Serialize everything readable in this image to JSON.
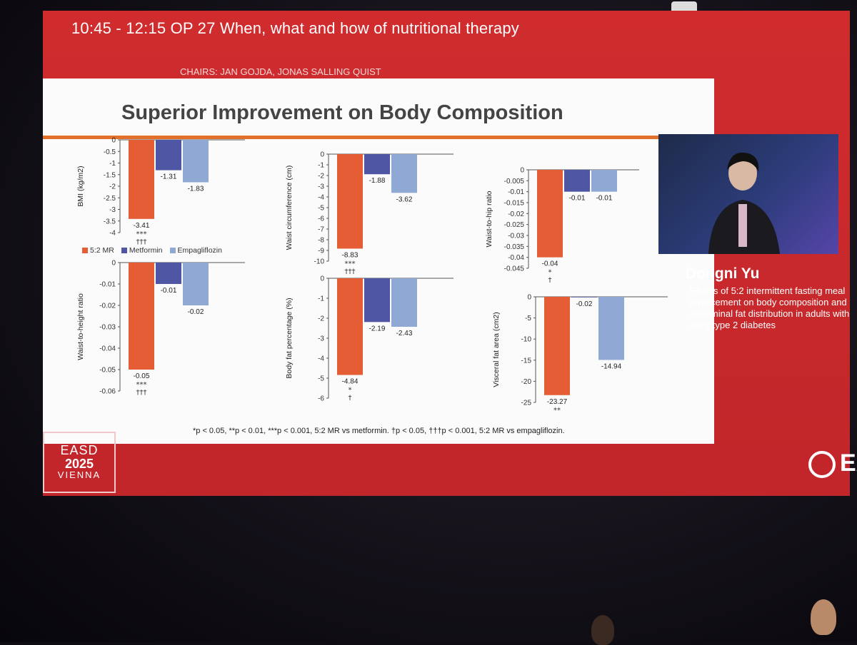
{
  "session": {
    "time_title": "10:45 - 12:15   OP 27 When, what and how of nutritional therapy",
    "chairs": "CHAIRS: JAN GOJDA, JONAS SALLING QUIST"
  },
  "slide": {
    "title": "Superior Improvement on Body Composition",
    "footnote": "*p < 0.05, **p < 0.01, ***p < 0.001, 5:2 MR vs metformin. †p < 0.05, †††p < 0.001, 5:2 MR vs empagliflozin.",
    "legend": [
      {
        "label": "5:2 MR",
        "color": "#e45d35"
      },
      {
        "label": "Metformin",
        "color": "#4f56a3"
      },
      {
        "label": "Empagliflozin",
        "color": "#8fa9d4"
      }
    ]
  },
  "chart_data": [
    {
      "type": "bar",
      "ylabel": "BMI (kg/m2)",
      "categories": [
        "5:2 MR",
        "Metformin",
        "Empagliflozin"
      ],
      "values": [
        -3.41,
        -1.31,
        -1.83
      ],
      "labels": [
        "-3.41",
        "-1.31",
        "-1.83"
      ],
      "ylim": [
        -4,
        0
      ],
      "ticks": [
        "0",
        "-0.5",
        "-1",
        "-1.5",
        "-2",
        "-2.5",
        "-3",
        "-3.5",
        "-4"
      ],
      "tick_values": [
        0,
        -0.5,
        -1,
        -1.5,
        -2,
        -2.5,
        -3,
        -3.5,
        -4
      ],
      "sig": [
        "***",
        "†††"
      ]
    },
    {
      "type": "bar",
      "ylabel": "Waist circumference (cm)",
      "categories": [
        "5:2 MR",
        "Metformin",
        "Empagliflozin"
      ],
      "values": [
        -8.83,
        -1.88,
        -3.62
      ],
      "labels": [
        "-8.83",
        "-1.88",
        "-3.62"
      ],
      "ylim": [
        -10,
        0
      ],
      "ticks": [
        "0",
        "-1",
        "-2",
        "-3",
        "-4",
        "-5",
        "-6",
        "-7",
        "-8",
        "-9",
        "-10"
      ],
      "tick_values": [
        0,
        -1,
        -2,
        -3,
        -4,
        -5,
        -6,
        -7,
        -8,
        -9,
        -10
      ],
      "sig": [
        "***",
        "†††"
      ]
    },
    {
      "type": "bar",
      "ylabel": "Waist-to-hip ratio",
      "categories": [
        "5:2 MR",
        "Metformin",
        "Empagliflozin"
      ],
      "values": [
        -0.04,
        -0.01,
        -0.01
      ],
      "labels": [
        "-0.04",
        "-0.01",
        "-0.01"
      ],
      "ylim": [
        -0.045,
        0
      ],
      "ticks": [
        "0",
        "-0.005",
        "-0.01",
        "-0.015",
        "-0.02",
        "-0.025",
        "-0.03",
        "-0.035",
        "-0.04",
        "-0.045"
      ],
      "tick_values": [
        0,
        -0.005,
        -0.01,
        -0.015,
        -0.02,
        -0.025,
        -0.03,
        -0.035,
        -0.04,
        -0.045
      ],
      "sig": [
        "*",
        "†"
      ]
    },
    {
      "type": "bar",
      "ylabel": "Waist-to-height ratio",
      "categories": [
        "5:2 MR",
        "Metformin",
        "Empagliflozin"
      ],
      "values": [
        -0.05,
        -0.01,
        -0.02
      ],
      "labels": [
        "-0.05",
        "-0.01",
        "-0.02"
      ],
      "ylim": [
        -0.06,
        0
      ],
      "ticks": [
        "0",
        "-0.01",
        "-0.02",
        "-0.03",
        "-0.04",
        "-0.05",
        "-0.06"
      ],
      "tick_values": [
        0,
        -0.01,
        -0.02,
        -0.03,
        -0.04,
        -0.05,
        -0.06
      ],
      "sig": [
        "***",
        "†††"
      ]
    },
    {
      "type": "bar",
      "ylabel": "Body fat percentage (%)",
      "categories": [
        "5:2 MR",
        "Metformin",
        "Empagliflozin"
      ],
      "values": [
        -4.84,
        -2.19,
        -2.43
      ],
      "labels": [
        "-4.84",
        "-2.19",
        "-2.43"
      ],
      "ylim": [
        -6,
        0
      ],
      "ticks": [
        "0",
        "-1",
        "-2",
        "-3",
        "-4",
        "-5",
        "-6"
      ],
      "tick_values": [
        0,
        -1,
        -2,
        -3,
        -4,
        -5,
        -6
      ],
      "sig": [
        "*",
        "†"
      ]
    },
    {
      "type": "bar",
      "ylabel": "Visceral fat area (cm2)",
      "categories": [
        "5:2 MR",
        "Metformin",
        "Empagliflozin"
      ],
      "values": [
        -23.27,
        -0.02,
        -14.94
      ],
      "labels": [
        "-23.27",
        "-0.02",
        "-14.94"
      ],
      "ylim": [
        -25,
        0
      ],
      "ticks": [
        "0",
        "-5",
        "-10",
        "-15",
        "-20",
        "-25"
      ],
      "tick_values": [
        0,
        -5,
        -10,
        -15,
        -20,
        -25
      ],
      "sig": [
        "**"
      ]
    }
  ],
  "speaker": {
    "name": "Dongni Yu",
    "talk": "Effects of 5:2 intermittent fasting meal replacement on body composition and abdominal fat distribution in adults with early type 2 diabetes"
  },
  "event_logo": {
    "line1": "EASD",
    "line2": "2025",
    "line3": "VIENNA"
  },
  "brand": "EA",
  "colors": {
    "screen_red": "#cf2a2c",
    "accent_orange": "#e2702b",
    "slide_bg": "#fbfbfb"
  }
}
